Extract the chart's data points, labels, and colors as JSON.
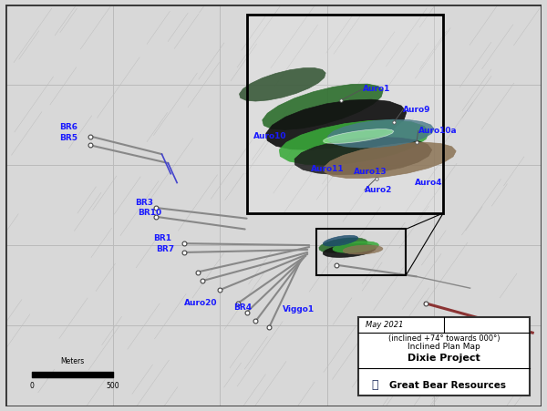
{
  "bg_color": "#d8d8d8",
  "map_bg": "#e8e8e8",
  "grid_color": "#bbbbbb",
  "label_color": "#1a1aff",
  "label_fontsize": 6.5,
  "legend_title": "Great Bear Resources",
  "legend_sub1": "Dixie Project",
  "legend_sub2": "Inclined Plan Map",
  "legend_sub3": "(inclined +74° towards 000°)",
  "legend_date": "May 2021",
  "scale_label": "Meters",
  "scale_ticks": [
    "0",
    "500"
  ],
  "figsize": [
    6.0,
    4.51
  ],
  "dpi": 100
}
